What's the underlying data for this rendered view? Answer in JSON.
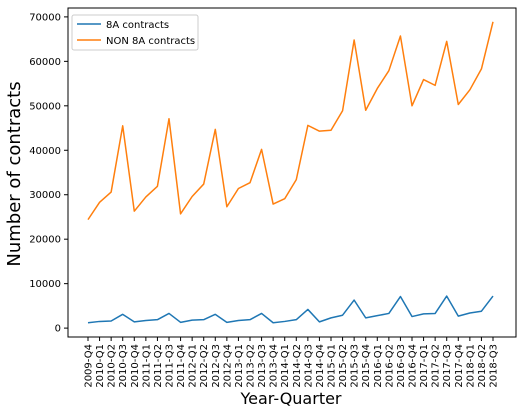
{
  "chart_data": {
    "type": "line",
    "xlabel": "Year-Quarter",
    "ylabel": "Number of contracts",
    "ylim": [
      -2000,
      72000
    ],
    "yticks": [
      0,
      10000,
      20000,
      30000,
      40000,
      50000,
      60000,
      70000
    ],
    "grid": false,
    "legend": {
      "position": "top-left"
    },
    "categories": [
      "2009-Q4",
      "2010-Q1",
      "2010-Q2",
      "2010-Q3",
      "2010-Q4",
      "2011-Q1",
      "2011-Q2",
      "2011-Q3",
      "2011-Q4",
      "2012-Q1",
      "2012-Q2",
      "2012-Q3",
      "2012-Q4",
      "2013-Q1",
      "2013-Q2",
      "2013-Q3",
      "2013-Q4",
      "2014-Q1",
      "2014-Q2",
      "2014-Q3",
      "2014-Q4",
      "2015-Q1",
      "2015-Q2",
      "2015-Q3",
      "2015-Q4",
      "2016-Q1",
      "2016-Q2",
      "2016-Q3",
      "2016-Q4",
      "2017-Q1",
      "2017-Q2",
      "2017-Q3",
      "2017-Q4",
      "2018-Q1",
      "2018-Q2",
      "2018-Q3"
    ],
    "series": [
      {
        "name": "8A contracts",
        "color": "#1f77b4",
        "values": [
          1200,
          1500,
          1600,
          3100,
          1400,
          1700,
          1900,
          3300,
          1300,
          1800,
          1900,
          3100,
          1300,
          1700,
          1900,
          3300,
          1200,
          1500,
          1900,
          4200,
          1400,
          2300,
          2900,
          6300,
          2300,
          2800,
          3300,
          7100,
          2600,
          3200,
          3300,
          7200,
          2700,
          3400,
          3800,
          7200
        ]
      },
      {
        "name": "NON 8A contracts",
        "color": "#ff7f0e",
        "values": [
          24400,
          28300,
          30600,
          45500,
          26300,
          29500,
          31900,
          47100,
          25700,
          29600,
          32400,
          44700,
          27300,
          31400,
          32700,
          40200,
          27900,
          29100,
          33400,
          45600,
          44300,
          44500,
          48900,
          64800,
          49000,
          53900,
          57900,
          65700,
          50000,
          55900,
          54600,
          64500,
          50300,
          53600,
          58300,
          68900
        ]
      }
    ]
  }
}
